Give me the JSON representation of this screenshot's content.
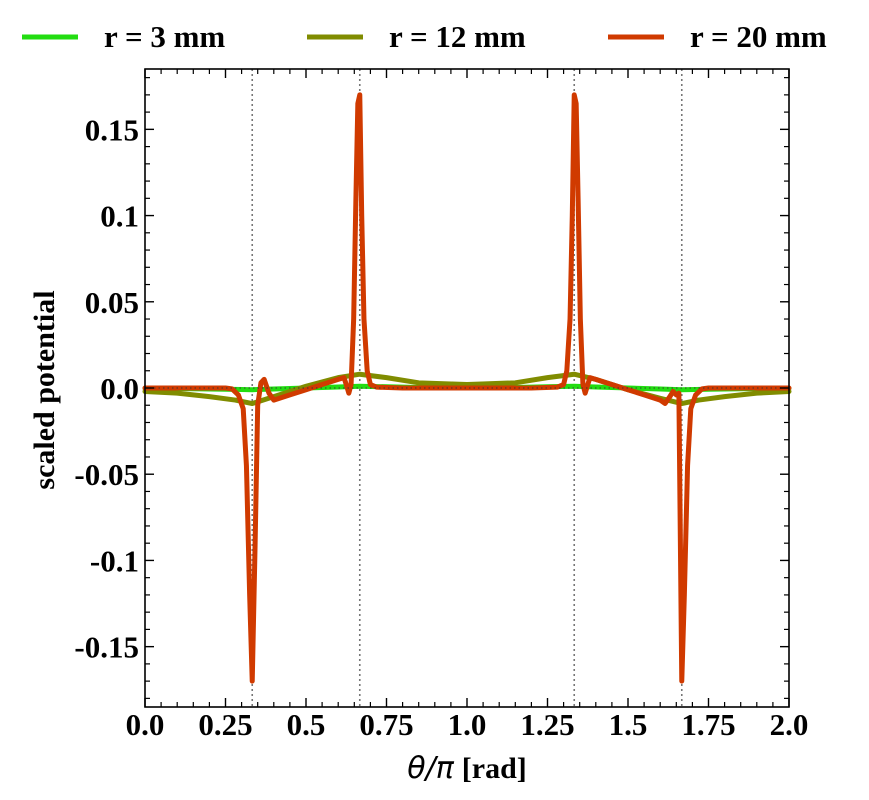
{
  "chart_data": {
    "type": "line",
    "title": "",
    "xlabel_symbol": "θ/π",
    "xlabel_unit": "[rad]",
    "ylabel": "scaled potential",
    "xlim": [
      0.0,
      2.0
    ],
    "ylim": [
      -0.185,
      0.185
    ],
    "xticks": [
      {
        "value": 0.0,
        "label": "0.0"
      },
      {
        "value": 0.25,
        "label": "0.25"
      },
      {
        "value": 0.5,
        "label": "0.5"
      },
      {
        "value": 0.75,
        "label": "0.75"
      },
      {
        "value": 1.0,
        "label": "1.0"
      },
      {
        "value": 1.25,
        "label": "1.25"
      },
      {
        "value": 1.5,
        "label": "1.5"
      },
      {
        "value": 1.75,
        "label": "1.75"
      },
      {
        "value": 2.0,
        "label": "2.0"
      }
    ],
    "yticks": [
      {
        "value": 0.15,
        "label": "0.15"
      },
      {
        "value": 0.1,
        "label": "0.1"
      },
      {
        "value": 0.05,
        "label": "0.05"
      },
      {
        "value": 0.0,
        "label": "0.0"
      },
      {
        "value": -0.05,
        "label": "-0.05"
      },
      {
        "value": -0.1,
        "label": "-0.1"
      },
      {
        "value": -0.15,
        "label": "-0.15"
      }
    ],
    "vlines": [
      0.333,
      0.667,
      1.333,
      1.667
    ],
    "grid": false,
    "legend_position": "top",
    "series": [
      {
        "name": "r = 3 mm",
        "color": "#22dd11",
        "x": [
          0.0,
          0.1,
          0.2,
          0.3,
          0.333,
          0.4,
          0.5,
          0.6,
          0.667,
          0.75,
          0.85,
          1.0,
          1.15,
          1.25,
          1.333,
          1.4,
          1.5,
          1.6,
          1.667,
          1.75,
          1.85,
          2.0
        ],
        "y": [
          -0.0002,
          -0.0003,
          -0.0006,
          -0.0009,
          -0.001,
          -0.0006,
          0.0,
          0.0006,
          0.001,
          0.0007,
          0.0003,
          0.0001,
          0.0003,
          0.0007,
          0.001,
          0.0006,
          0.0,
          -0.0006,
          -0.001,
          -0.0007,
          -0.0004,
          -0.0002
        ]
      },
      {
        "name": "r = 12 mm",
        "color": "#808c00",
        "x": [
          0.0,
          0.1,
          0.2,
          0.28,
          0.333,
          0.4,
          0.5,
          0.6,
          0.667,
          0.75,
          0.85,
          1.0,
          1.15,
          1.25,
          1.333,
          1.4,
          1.5,
          1.6,
          1.667,
          1.72,
          1.8,
          1.9,
          2.0
        ],
        "y": [
          -0.002,
          -0.003,
          -0.005,
          -0.007,
          -0.009,
          -0.005,
          0.001,
          0.006,
          0.008,
          0.006,
          0.003,
          0.002,
          0.003,
          0.006,
          0.008,
          0.005,
          -0.001,
          -0.006,
          -0.009,
          -0.007,
          -0.005,
          -0.003,
          -0.002
        ]
      },
      {
        "name": "r = 20 mm",
        "color": "#d03a00",
        "x": [
          0.0,
          0.25,
          0.27,
          0.29,
          0.305,
          0.315,
          0.325,
          0.333,
          0.342,
          0.35,
          0.36,
          0.37,
          0.385,
          0.4,
          0.45,
          0.5,
          0.55,
          0.6,
          0.618,
          0.625,
          0.633,
          0.64,
          0.648,
          0.655,
          0.661,
          0.667,
          0.673,
          0.68,
          0.69,
          0.7,
          0.72,
          0.8,
          1.0,
          1.2,
          1.28,
          1.3,
          1.31,
          1.32,
          1.327,
          1.333,
          1.339,
          1.345,
          1.352,
          1.36,
          1.367,
          1.375,
          1.382,
          1.4,
          1.45,
          1.5,
          1.55,
          1.6,
          1.615,
          1.63,
          1.64,
          1.65,
          1.658,
          1.667,
          1.675,
          1.685,
          1.695,
          1.71,
          1.73,
          1.75,
          2.0
        ],
        "y": [
          0.0,
          0.0,
          -0.0005,
          -0.004,
          -0.012,
          -0.045,
          -0.12,
          -0.17,
          -0.09,
          -0.01,
          0.003,
          0.005,
          -0.003,
          -0.007,
          -0.004,
          -0.001,
          0.002,
          0.005,
          0.006,
          0.002,
          -0.003,
          0.002,
          0.04,
          0.11,
          0.165,
          0.17,
          0.1,
          0.04,
          0.01,
          0.002,
          0.0005,
          0.0,
          0.0,
          0.0,
          0.0005,
          0.002,
          0.01,
          0.04,
          0.1,
          0.17,
          0.165,
          0.11,
          0.04,
          0.002,
          -0.003,
          0.002,
          0.006,
          0.005,
          0.002,
          -0.001,
          -0.004,
          -0.007,
          -0.009,
          -0.005,
          -0.002,
          -0.004,
          -0.003,
          -0.17,
          -0.12,
          -0.045,
          -0.012,
          -0.004,
          -0.0005,
          0.0,
          0.0
        ]
      }
    ]
  }
}
